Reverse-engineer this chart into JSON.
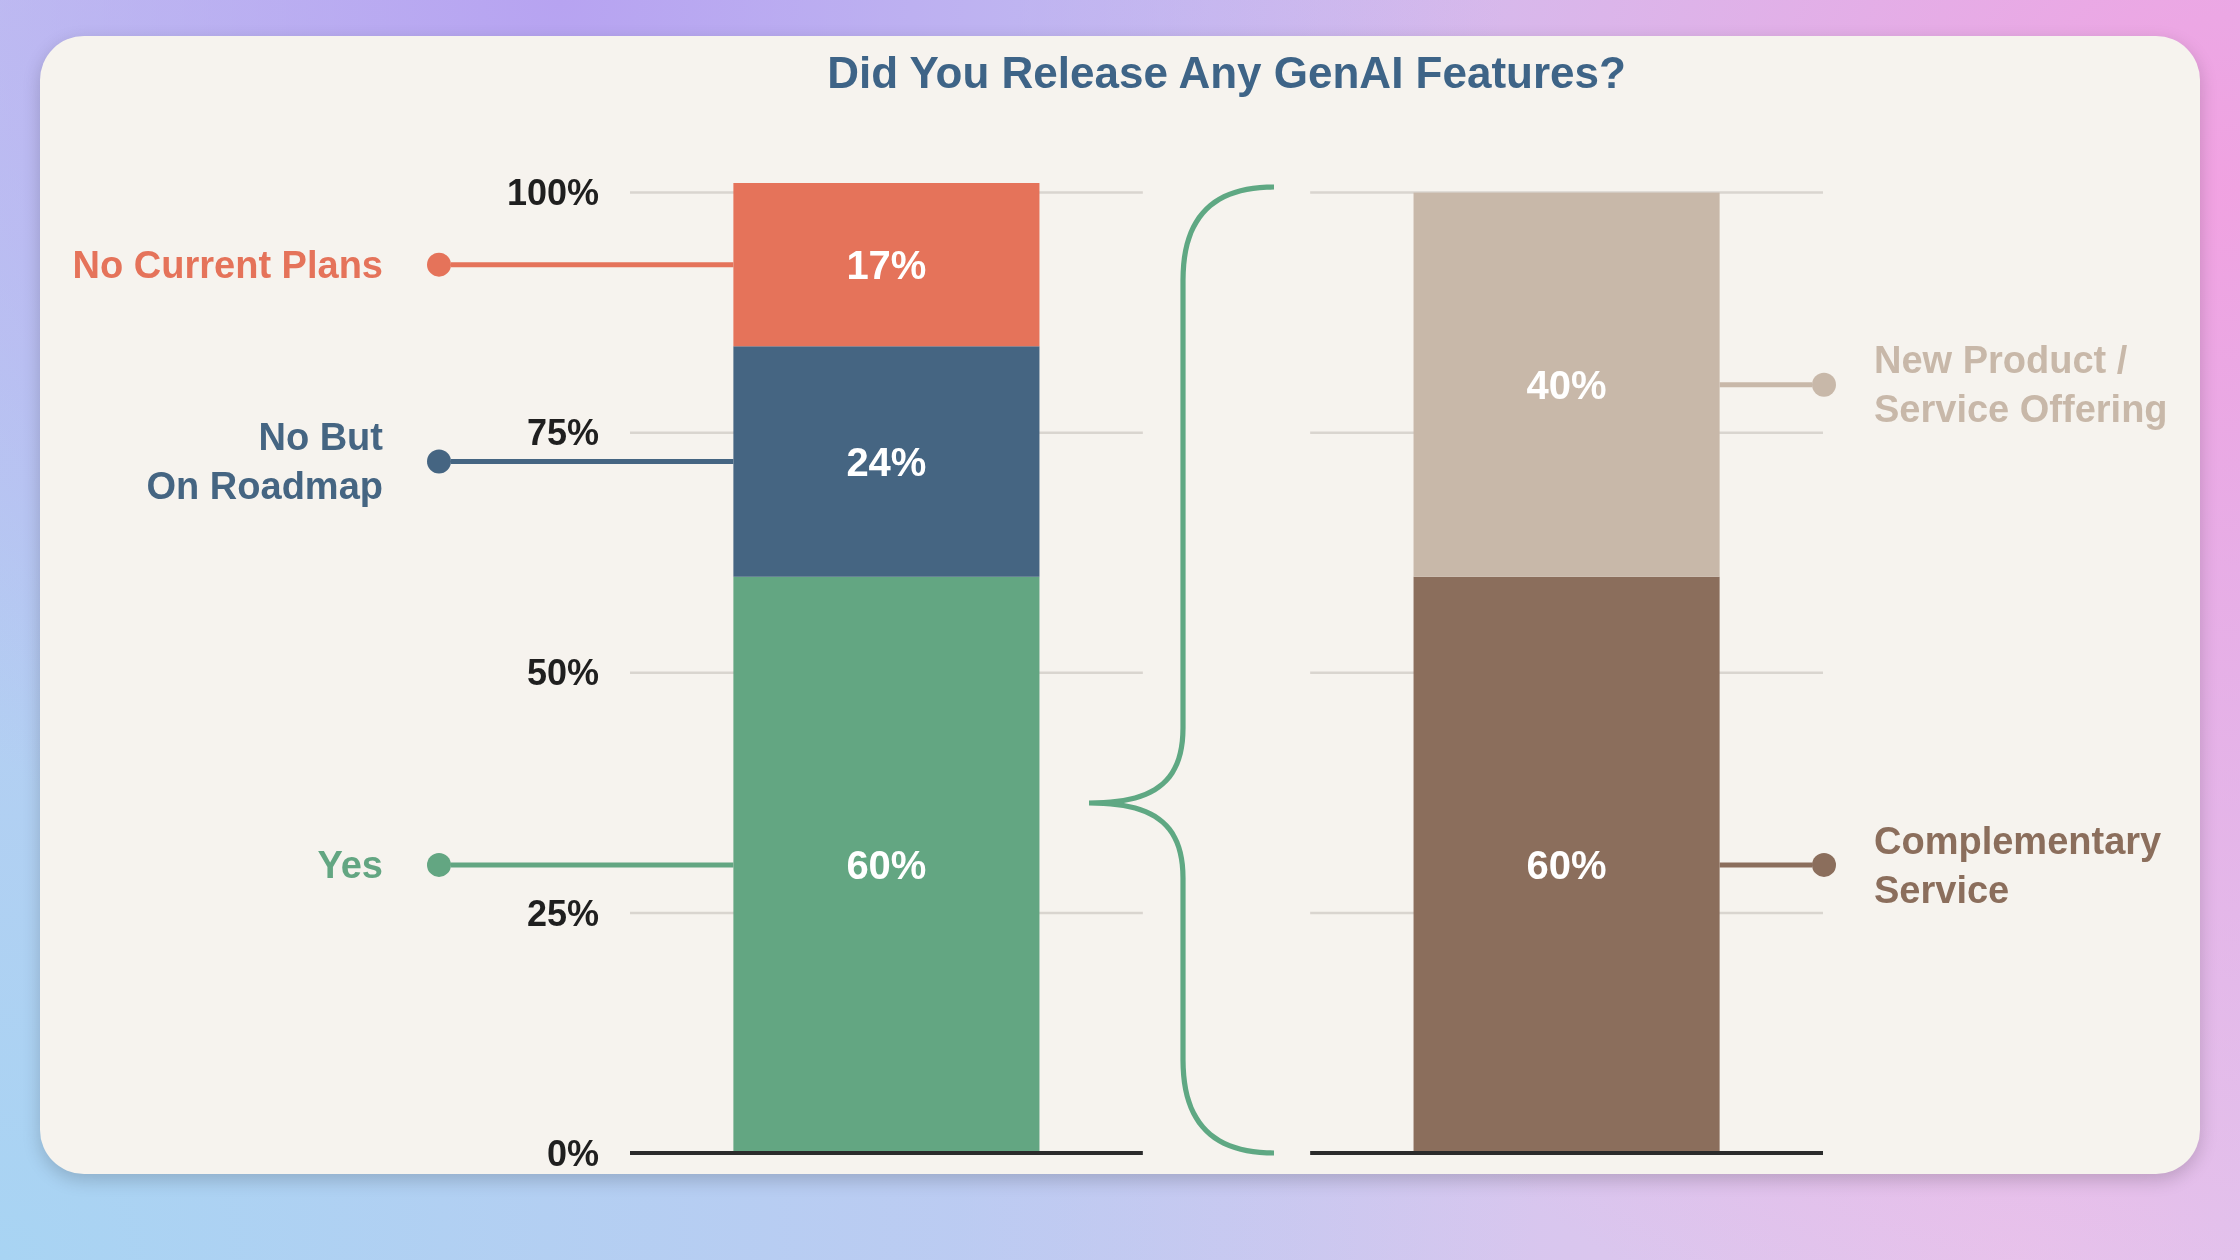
{
  "chart_data": {
    "type": "bar",
    "title": "Did You Release Any GenAI Features?",
    "categories": [
      null,
      null
    ],
    "stacked": true,
    "series": [
      {
        "name": "Yes",
        "color": "#63a682",
        "values": [
          60,
          null
        ],
        "value_labels": [
          "60%",
          null
        ]
      },
      {
        "name": "No But\nOn Roadmap",
        "color": "#456582",
        "values": [
          24,
          null
        ],
        "value_labels": [
          "24%",
          null
        ]
      },
      {
        "name": "No Current Plans",
        "color": "#e5735a",
        "values": [
          17,
          null
        ],
        "value_labels": [
          "17%",
          null
        ]
      },
      {
        "name": "Complementary\nService",
        "color": "#8b6e5c",
        "values": [
          null,
          60
        ],
        "value_labels": [
          null,
          "60%"
        ]
      },
      {
        "name": "New Product /\nService Offering",
        "color": "#c8b8a9",
        "values": [
          null,
          40
        ],
        "value_labels": [
          null,
          "40%"
        ]
      }
    ],
    "ylim": [
      0,
      101
    ],
    "yticks": [
      {
        "value": 0,
        "label": "0%"
      },
      {
        "value": 25,
        "label": "25%"
      },
      {
        "value": 50,
        "label": "50%"
      },
      {
        "value": 75,
        "label": "75%"
      },
      {
        "value": 100,
        "label": "100%"
      }
    ],
    "grid": "y",
    "legend": "left"
  }
}
